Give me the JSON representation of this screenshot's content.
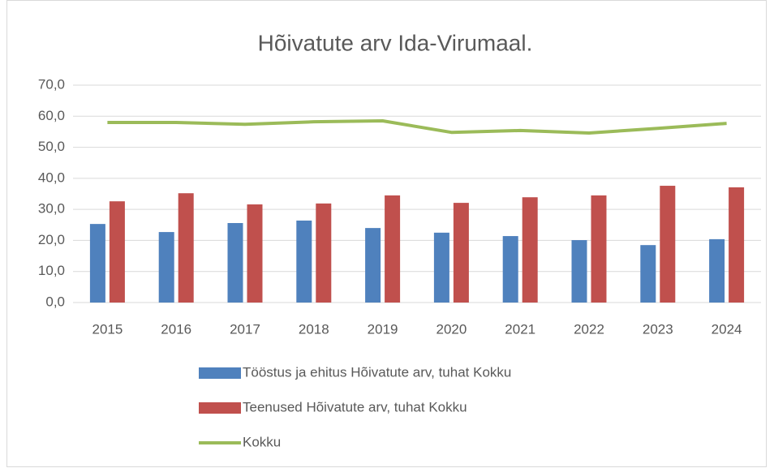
{
  "chart_data": {
    "type": "bar",
    "title": "Hõivatute arv Ida-Virumaal.",
    "categories": [
      "2015",
      "2016",
      "2017",
      "2018",
      "2019",
      "2020",
      "2021",
      "2022",
      "2023",
      "2024"
    ],
    "series": [
      {
        "name": "Tööstus ja ehitus Hõivatute arv, tuhat Kokku",
        "color": "#4f81bd",
        "type": "bar",
        "values": [
          25.3,
          22.7,
          25.6,
          26.4,
          24.0,
          22.5,
          21.4,
          20.1,
          18.5,
          20.4
        ]
      },
      {
        "name": "Teenused Hõivatute arv, tuhat Kokku",
        "color": "#c0504d",
        "type": "bar",
        "values": [
          32.6,
          35.2,
          31.6,
          31.9,
          34.5,
          32.1,
          33.9,
          34.5,
          37.6,
          37.1
        ]
      },
      {
        "name": "Kokku",
        "color": "#9bbb59",
        "type": "line",
        "values": [
          58.0,
          58.0,
          57.4,
          58.2,
          58.5,
          54.8,
          55.4,
          54.6,
          56.1,
          57.7
        ]
      }
    ],
    "ylim": [
      0,
      70
    ],
    "yticks": [
      {
        "value": 0,
        "label": "0,0"
      },
      {
        "value": 10,
        "label": "10,0"
      },
      {
        "value": 20,
        "label": "20,0"
      },
      {
        "value": 30,
        "label": "30,0"
      },
      {
        "value": 40,
        "label": "40,0"
      },
      {
        "value": 50,
        "label": "50,0"
      },
      {
        "value": 60,
        "label": "60,0"
      },
      {
        "value": 70,
        "label": "70,0"
      }
    ],
    "grid": true,
    "legend": "bottom"
  }
}
